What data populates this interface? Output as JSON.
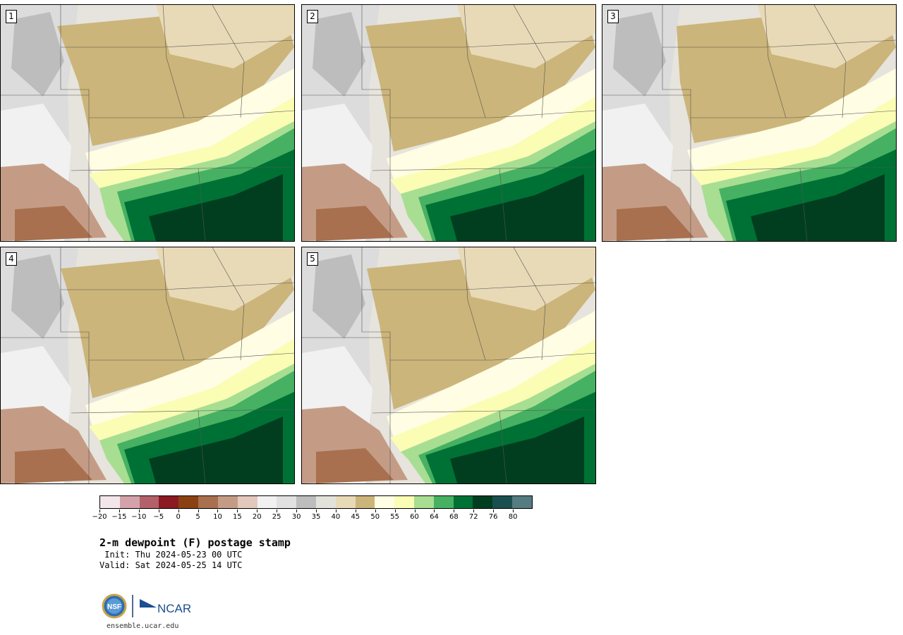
{
  "panels": [
    {
      "label": "1"
    },
    {
      "label": "2"
    },
    {
      "label": "3"
    },
    {
      "label": "4"
    },
    {
      "label": "5"
    }
  ],
  "colorbar": {
    "colors": [
      "#f3e6ea",
      "#d4a2aa",
      "#b2616a",
      "#8b1a22",
      "#8a4212",
      "#a8704e",
      "#c49c86",
      "#e3c8bc",
      "#f1f1f1",
      "#e1e1e1",
      "#bdbdbd",
      "#e3e2da",
      "#e8dab7",
      "#ccb57a",
      "#fffde3",
      "#fbfdb4",
      "#a8de92",
      "#46b162",
      "#007135",
      "#003e1f",
      "#1a4f4f",
      "#557c80"
    ],
    "tick_labels": [
      "−20",
      "−15",
      "−10",
      "−5",
      "0",
      "5",
      "10",
      "15",
      "20",
      "25",
      "30",
      "35",
      "40",
      "45",
      "50",
      "55",
      "60",
      "64",
      "68",
      "72",
      "76",
      "80"
    ]
  },
  "title": "2-m dewpoint (F) postage stamp",
  "init": " Init: Thu 2024-05-23 00 UTC",
  "valid": "Valid: Sat 2024-05-25 14 UTC",
  "logo": {
    "nsf": "NSF",
    "ncar": "NCAR"
  },
  "website": "ensemble.ucar.edu"
}
